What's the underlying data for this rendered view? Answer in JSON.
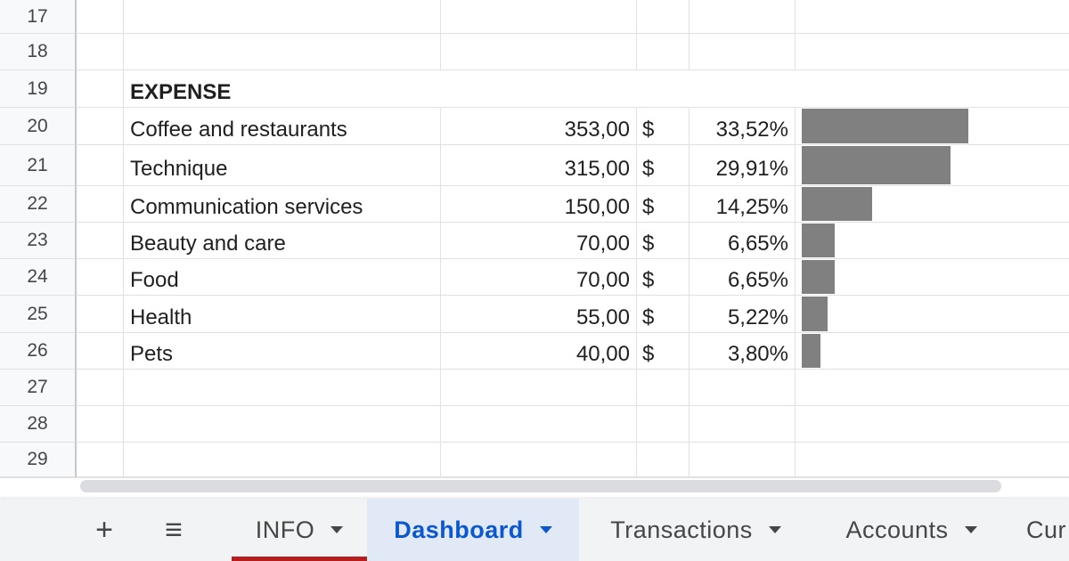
{
  "sheet": {
    "rows": [
      {
        "num": "17",
        "label": "",
        "amount": "",
        "currency": "",
        "percent": "",
        "bar_fraction": null,
        "heading": false
      },
      {
        "num": "18",
        "label": "",
        "amount": "",
        "currency": "",
        "percent": "",
        "bar_fraction": null,
        "heading": false
      },
      {
        "num": "19",
        "label": "EXPENSE",
        "amount": "",
        "currency": "",
        "percent": "",
        "bar_fraction": null,
        "heading": true
      },
      {
        "num": "20",
        "label": "Coffee and restaurants",
        "amount": "353,00",
        "currency": "$",
        "percent": "33,52%",
        "bar_fraction": 0.3352,
        "heading": false
      },
      {
        "num": "21",
        "label": "Technique",
        "amount": "315,00",
        "currency": "$",
        "percent": "29,91%",
        "bar_fraction": 0.2991,
        "heading": false
      },
      {
        "num": "22",
        "label": "Communication services",
        "amount": "150,00",
        "currency": "$",
        "percent": "14,25%",
        "bar_fraction": 0.1425,
        "heading": false
      },
      {
        "num": "23",
        "label": "Beauty and care",
        "amount": "70,00",
        "currency": "$",
        "percent": "6,65%",
        "bar_fraction": 0.0665,
        "heading": false
      },
      {
        "num": "24",
        "label": "Food",
        "amount": "70,00",
        "currency": "$",
        "percent": "6,65%",
        "bar_fraction": 0.0665,
        "heading": false
      },
      {
        "num": "25",
        "label": "Health",
        "amount": "55,00",
        "currency": "$",
        "percent": "5,22%",
        "bar_fraction": 0.0522,
        "heading": false
      },
      {
        "num": "26",
        "label": "Pets",
        "amount": "40,00",
        "currency": "$",
        "percent": "3,80%",
        "bar_fraction": 0.038,
        "heading": false
      },
      {
        "num": "27",
        "label": "",
        "amount": "",
        "currency": "",
        "percent": "",
        "bar_fraction": null,
        "heading": false
      },
      {
        "num": "28",
        "label": "",
        "amount": "",
        "currency": "",
        "percent": "",
        "bar_fraction": null,
        "heading": false
      },
      {
        "num": "29",
        "label": "",
        "amount": "",
        "currency": "",
        "percent": "",
        "bar_fraction": null,
        "heading": false
      }
    ],
    "bar_color": "#808080"
  },
  "tabbar": {
    "add_icon": "plus-icon",
    "menu_icon": "list-menu-icon",
    "add_label": "+",
    "menu_label": "≡",
    "tabs": [
      {
        "label": "INFO",
        "active": false,
        "underline_color": "#b81d1d"
      },
      {
        "label": "Dashboard",
        "active": true
      },
      {
        "label": "Transactions",
        "active": false
      },
      {
        "label": "Accounts",
        "active": false
      },
      {
        "label": "Cur",
        "active": false
      }
    ]
  }
}
